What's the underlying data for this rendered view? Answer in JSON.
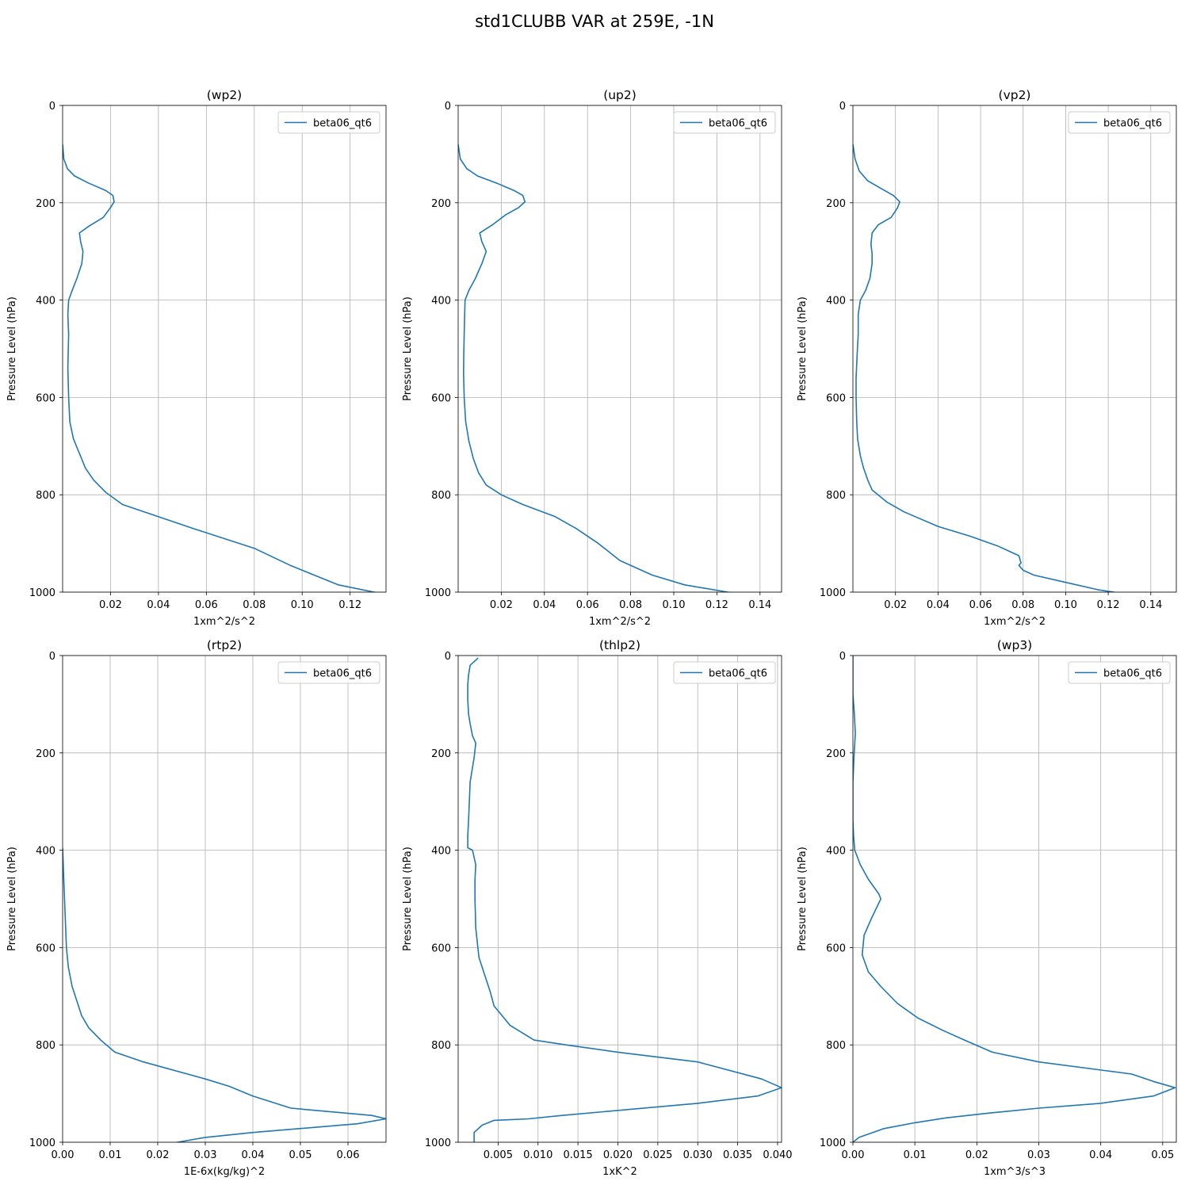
{
  "figure": {
    "title": "std1CLUBB VAR at 259E, -1N",
    "line_color": "#1f77b4",
    "grid_color": "#b0b0b0"
  },
  "chart_data": [
    {
      "type": "line",
      "title": "(wp2)",
      "xlabel": "1xm^2/s^2",
      "ylabel": "Pressure Level (hPa)",
      "xlim": [
        0.0,
        0.135
      ],
      "ylim": [
        1000,
        0
      ],
      "y_inverted": true,
      "grid": true,
      "legend": "upper right",
      "xticks": [
        0.02,
        0.04,
        0.06,
        0.08,
        0.1,
        0.12
      ],
      "xticklabels": [
        "0.02",
        "0.04",
        "0.06",
        "0.08",
        "0.10",
        "0.12"
      ],
      "yticks": [
        0,
        200,
        400,
        600,
        800,
        1000
      ],
      "series": [
        {
          "name": "beta06_qt6",
          "x": [
            0.0,
            0.0005,
            0.002,
            0.005,
            0.011,
            0.018,
            0.021,
            0.0215,
            0.02,
            0.017,
            0.011,
            0.007,
            0.0075,
            0.0085,
            0.008,
            0.006,
            0.004,
            0.0025,
            0.0022,
            0.0025,
            0.0023,
            0.0022,
            0.0025,
            0.003,
            0.0045,
            0.007,
            0.0095,
            0.013,
            0.018,
            0.025,
            0.037,
            0.055,
            0.08,
            0.095,
            0.105,
            0.115,
            0.13,
            0.135,
            0.125,
            0.1
          ],
          "y": [
            80,
            110,
            130,
            145,
            160,
            175,
            185,
            198,
            210,
            230,
            248,
            262,
            280,
            300,
            325,
            355,
            380,
            400,
            430,
            470,
            510,
            540,
            600,
            650,
            685,
            715,
            745,
            770,
            795,
            820,
            840,
            870,
            910,
            945,
            965,
            985,
            1000,
            1005,
            1010,
            1015
          ]
        }
      ]
    },
    {
      "type": "line",
      "title": "(up2)",
      "xlabel": "1xm^2/s^2",
      "ylabel": "Pressure Level (hPa)",
      "xlim": [
        0.0,
        0.15
      ],
      "ylim": [
        1000,
        0
      ],
      "y_inverted": true,
      "grid": true,
      "legend": "upper right",
      "xticks": [
        0.02,
        0.04,
        0.06,
        0.08,
        0.1,
        0.12,
        0.14
      ],
      "xticklabels": [
        "0.02",
        "0.04",
        "0.06",
        "0.08",
        "0.10",
        "0.12",
        "0.14"
      ],
      "yticks": [
        0,
        200,
        400,
        600,
        800,
        1000
      ],
      "series": [
        {
          "name": "beta06_qt6",
          "x": [
            0.0,
            0.001,
            0.004,
            0.009,
            0.018,
            0.026,
            0.03,
            0.031,
            0.028,
            0.022,
            0.016,
            0.01,
            0.011,
            0.013,
            0.011,
            0.008,
            0.005,
            0.0032,
            0.003,
            0.0028,
            0.0026,
            0.0025,
            0.0028,
            0.0035,
            0.005,
            0.007,
            0.0095,
            0.013,
            0.02,
            0.03,
            0.045,
            0.055,
            0.065,
            0.075,
            0.09,
            0.105,
            0.125,
            0.14,
            0.15
          ],
          "y": [
            80,
            110,
            130,
            145,
            160,
            175,
            185,
            198,
            210,
            225,
            245,
            262,
            280,
            300,
            325,
            355,
            380,
            400,
            430,
            470,
            510,
            550,
            600,
            650,
            690,
            725,
            755,
            780,
            800,
            820,
            845,
            870,
            900,
            935,
            965,
            985,
            1000,
            1007,
            1010
          ]
        }
      ]
    },
    {
      "type": "line",
      "title": "(vp2)",
      "xlabel": "1xm^2/s^2",
      "ylabel": "Pressure Level (hPa)",
      "xlim": [
        0.0,
        0.152
      ],
      "ylim": [
        1000,
        0
      ],
      "y_inverted": true,
      "grid": true,
      "legend": "upper right",
      "xticks": [
        0.02,
        0.04,
        0.06,
        0.08,
        0.1,
        0.12,
        0.14
      ],
      "xticklabels": [
        "0.02",
        "0.04",
        "0.06",
        "0.08",
        "0.10",
        "0.12",
        "0.14"
      ],
      "yticks": [
        0,
        200,
        400,
        600,
        800,
        1000
      ],
      "series": [
        {
          "name": "beta06_qt6",
          "x": [
            0.0,
            0.001,
            0.003,
            0.007,
            0.013,
            0.019,
            0.022,
            0.021,
            0.018,
            0.012,
            0.009,
            0.0085,
            0.009,
            0.009,
            0.008,
            0.006,
            0.0035,
            0.0025,
            0.0025,
            0.002,
            0.0015,
            0.0015,
            0.0018,
            0.0022,
            0.0035,
            0.005,
            0.007,
            0.009,
            0.016,
            0.024,
            0.04,
            0.055,
            0.068,
            0.078,
            0.079,
            0.078,
            0.08,
            0.085,
            0.1,
            0.115,
            0.13,
            0.152
          ],
          "y": [
            80,
            110,
            135,
            155,
            170,
            185,
            198,
            210,
            230,
            245,
            262,
            285,
            305,
            325,
            355,
            380,
            400,
            430,
            470,
            510,
            560,
            600,
            650,
            685,
            720,
            745,
            770,
            790,
            815,
            835,
            865,
            885,
            905,
            925,
            940,
            945,
            955,
            965,
            980,
            995,
            1005,
            1012
          ]
        }
      ]
    },
    {
      "type": "line",
      "title": "(rtp2)",
      "xlabel": "1E-6x(kg/kg)^2",
      "ylabel": "Pressure Level (hPa)",
      "xlim": [
        0.0,
        0.068
      ],
      "ylim": [
        1000,
        0
      ],
      "y_inverted": true,
      "grid": true,
      "legend": "upper right",
      "xticks": [
        0.0,
        0.01,
        0.02,
        0.03,
        0.04,
        0.05,
        0.06
      ],
      "xticklabels": [
        "0.00",
        "0.01",
        "0.02",
        "0.03",
        "0.04",
        "0.05",
        "0.06"
      ],
      "yticks": [
        0,
        200,
        400,
        600,
        800,
        1000
      ],
      "series": [
        {
          "name": "beta06_qt6",
          "x": [
            0.0,
            0.0002,
            0.0004,
            0.0006,
            0.0008,
            0.0012,
            0.002,
            0.003,
            0.004,
            0.0055,
            0.008,
            0.011,
            0.017,
            0.03,
            0.035,
            0.04,
            0.048,
            0.065,
            0.068,
            0.062,
            0.04,
            0.03,
            0.0225
          ],
          "y": [
            395,
            450,
            500,
            550,
            600,
            640,
            680,
            710,
            740,
            765,
            790,
            815,
            835,
            870,
            885,
            905,
            930,
            945,
            952,
            962,
            980,
            990,
            1003
          ]
        }
      ]
    },
    {
      "type": "line",
      "title": "(thlp2)",
      "xlabel": "1xK^2",
      "ylabel": "Pressure Level (hPa)",
      "xlim": [
        0.0,
        0.0405
      ],
      "ylim": [
        1000,
        0
      ],
      "y_inverted": true,
      "grid": true,
      "legend": "upper right",
      "xticks": [
        0.005,
        0.01,
        0.015,
        0.02,
        0.025,
        0.03,
        0.035,
        0.04
      ],
      "xticklabels": [
        "0.005",
        "0.010",
        "0.015",
        "0.020",
        "0.025",
        "0.030",
        "0.035",
        "0.040"
      ],
      "yticks": [
        0,
        200,
        400,
        600,
        800,
        1000
      ],
      "series": [
        {
          "name": "beta06_qt6",
          "x": [
            0.0025,
            0.0015,
            0.0013,
            0.0012,
            0.0012,
            0.0013,
            0.0015,
            0.0018,
            0.0022,
            0.002,
            0.0018,
            0.0015,
            0.0014,
            0.0013,
            0.0012,
            0.0012,
            0.0018,
            0.0022,
            0.0021,
            0.0021,
            0.0022,
            0.0026,
            0.0032,
            0.004,
            0.0045,
            0.0065,
            0.0095,
            0.0135,
            0.02,
            0.03,
            0.038,
            0.0405,
            0.0375,
            0.03,
            0.013,
            0.0088,
            0.0045,
            0.003,
            0.002,
            0.002
          ],
          "y": [
            5,
            20,
            40,
            60,
            90,
            120,
            140,
            165,
            180,
            210,
            230,
            260,
            300,
            340,
            370,
            395,
            400,
            430,
            460,
            500,
            560,
            620,
            650,
            690,
            720,
            760,
            790,
            800,
            815,
            835,
            870,
            888,
            905,
            920,
            945,
            952,
            955,
            965,
            980,
            1000
          ]
        }
      ]
    },
    {
      "type": "line",
      "title": "(wp3)",
      "xlabel": "1xm^3/s^3",
      "ylabel": "Pressure Level (hPa)",
      "xlim": [
        0.0,
        0.0522
      ],
      "ylim": [
        1000,
        0
      ],
      "y_inverted": true,
      "grid": true,
      "legend": "upper right",
      "xticks": [
        0.0,
        0.01,
        0.02,
        0.03,
        0.04,
        0.05
      ],
      "xticklabels": [
        "0.00",
        "0.01",
        "0.02",
        "0.03",
        "0.04",
        "0.05"
      ],
      "yticks": [
        0,
        200,
        400,
        600,
        800,
        1000
      ],
      "series": [
        {
          "name": "beta06_qt6",
          "x": [
            0.0,
            0.0,
            0.0002,
            0.0004,
            0.0002,
            0.0,
            0.0,
            0.0001,
            0.0003,
            0.0012,
            0.0025,
            0.0042,
            0.0045,
            0.003,
            0.0018,
            0.0015,
            0.0025,
            0.0045,
            0.0072,
            0.0105,
            0.0145,
            0.018,
            0.0225,
            0.03,
            0.045,
            0.0485,
            0.052,
            0.0485,
            0.04,
            0.03,
            0.022,
            0.015,
            0.01,
            0.005,
            0.001,
            0.0
          ],
          "y": [
            0,
            80,
            115,
            160,
            200,
            260,
            340,
            370,
            400,
            430,
            460,
            490,
            500,
            540,
            575,
            615,
            650,
            680,
            715,
            745,
            770,
            790,
            815,
            835,
            860,
            875,
            888,
            905,
            920,
            930,
            940,
            950,
            960,
            972,
            990,
            1000
          ]
        }
      ]
    }
  ]
}
